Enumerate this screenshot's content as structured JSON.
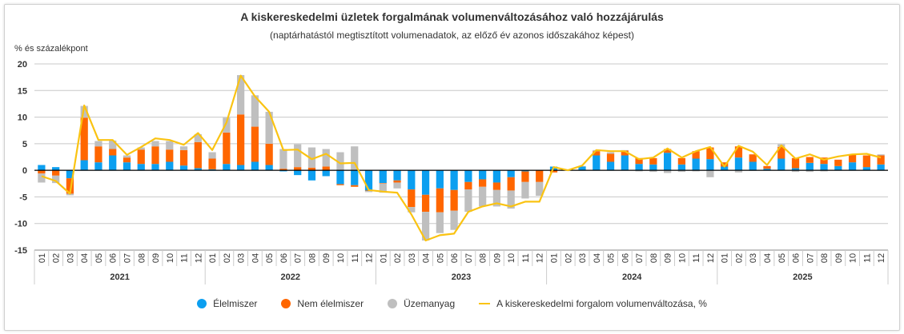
{
  "chart_data": {
    "type": "bar",
    "stacked": true,
    "title": "A kiskereskedelmi üzletek forgalmának volumenváltozásához való hozzájárulás",
    "subtitle": "(naptárhatástól megtisztított volumenadatok, az előző év azonos időszakához képest)",
    "ylabel": "% és százalékpont",
    "xlabel": "",
    "ylim": [
      -15,
      20
    ],
    "yticks": [
      20,
      15,
      10,
      5,
      0,
      -5,
      -10,
      -15
    ],
    "grid": true,
    "legend_position": "bottom",
    "years": [
      "2021",
      "2022",
      "2023",
      "2024",
      "2025"
    ],
    "months": [
      "01",
      "02",
      "03",
      "04",
      "05",
      "06",
      "07",
      "08",
      "09",
      "10",
      "11",
      "12"
    ],
    "colors": {
      "food": "#0c9ff0",
      "nonfood": "#ff6600",
      "fuel": "#bfbfbf",
      "total": "#fac312"
    },
    "series": [
      {
        "name": "Élelmiszer",
        "key": "food",
        "values": [
          1.0,
          0.6,
          -1.5,
          1.9,
          1.5,
          2.8,
          1.5,
          1.2,
          1.2,
          1.6,
          0.9,
          0.4,
          0.2,
          1.2,
          1.0,
          1.6,
          1.0,
          -0.2,
          -0.9,
          -1.9,
          -1.1,
          -2.6,
          -2.8,
          -3.8,
          -2.4,
          -1.9,
          -3.6,
          -4.6,
          -3.4,
          -3.7,
          -2.2,
          -1.7,
          -2.3,
          -1.3,
          -0.2,
          0.0,
          0.7,
          0.1,
          0.7,
          2.8,
          1.6,
          2.8,
          1.2,
          1.1,
          3.3,
          1.1,
          2.2,
          2.1,
          0.7,
          2.4,
          1.6,
          0.3,
          2.2,
          0.4,
          1.4,
          1.2,
          0.8,
          1.5,
          0.6,
          1.1
        ]
      },
      {
        "name": "Nem élelmiszer",
        "key": "nonfood",
        "values": [
          -0.6,
          -1.0,
          -2.9,
          8.0,
          3.0,
          1.2,
          0.9,
          2.7,
          3.3,
          2.3,
          2.9,
          4.9,
          2.0,
          5.9,
          9.5,
          6.6,
          4.0,
          0.3,
          0.6,
          0.5,
          0.7,
          -0.2,
          -0.3,
          -0.1,
          -0.1,
          -0.4,
          -3.3,
          -3.2,
          -4.5,
          -3.9,
          -1.4,
          -1.4,
          -1.4,
          -2.5,
          -2.0,
          -2.2,
          -0.4,
          0.0,
          0.0,
          0.8,
          1.5,
          0.9,
          1.1,
          1.2,
          0.7,
          1.2,
          1.4,
          2.2,
          0.8,
          2.1,
          1.4,
          0.5,
          2.2,
          1.9,
          1.1,
          1.2,
          1.2,
          1.4,
          2.2,
          1.7
        ]
      },
      {
        "name": "Üzemanyag",
        "key": "fuel",
        "values": [
          -1.7,
          -1.4,
          -0.3,
          2.2,
          1.0,
          1.6,
          0.4,
          0.4,
          1.0,
          1.6,
          0.7,
          1.5,
          1.2,
          2.8,
          7.4,
          5.9,
          6.0,
          3.7,
          4.3,
          3.8,
          3.3,
          3.4,
          4.5,
          -0.2,
          -1.7,
          -1.1,
          -1.0,
          -5.4,
          -3.9,
          -3.6,
          -4.2,
          -3.7,
          -3.1,
          -3.4,
          -3.1,
          -2.6,
          0.0,
          0.0,
          0.1,
          0.2,
          0.3,
          0.1,
          -0.2,
          -0.3,
          -0.5,
          -0.3,
          -0.2,
          -1.3,
          0.0,
          -0.4,
          -0.1,
          0.0,
          0.5,
          -0.3,
          -0.3,
          -0.2,
          0.0,
          0.0,
          0.0,
          0.2
        ]
      },
      {
        "name": "A kiskereskedelmi forgalom volumenváltozása, %",
        "key": "total",
        "type": "line",
        "values": [
          -1.1,
          -2.0,
          -4.4,
          12.2,
          5.7,
          5.7,
          2.9,
          4.4,
          6.0,
          5.7,
          4.8,
          7.0,
          3.8,
          9.0,
          17.8,
          13.9,
          11.0,
          3.8,
          3.9,
          2.1,
          3.1,
          1.3,
          1.4,
          -3.7,
          -4.0,
          -4.2,
          -8.3,
          -13.2,
          -12.2,
          -11.9,
          -7.8,
          -6.8,
          -6.2,
          -6.8,
          -5.9,
          -5.9,
          0.6,
          0.0,
          0.9,
          3.8,
          3.6,
          3.6,
          2.1,
          2.4,
          4.1,
          2.4,
          3.6,
          4.4,
          0.7,
          4.6,
          3.5,
          1.0,
          4.7,
          2.2,
          3.0,
          2.0,
          2.6,
          3.0,
          3.1,
          2.4
        ]
      }
    ]
  },
  "legend": {
    "items": [
      {
        "label": "Élelmiszer"
      },
      {
        "label": "Nem élelmiszer"
      },
      {
        "label": "Üzemanyag"
      },
      {
        "label": "A kiskereskedelmi forgalom volumenváltozása, %"
      }
    ]
  }
}
